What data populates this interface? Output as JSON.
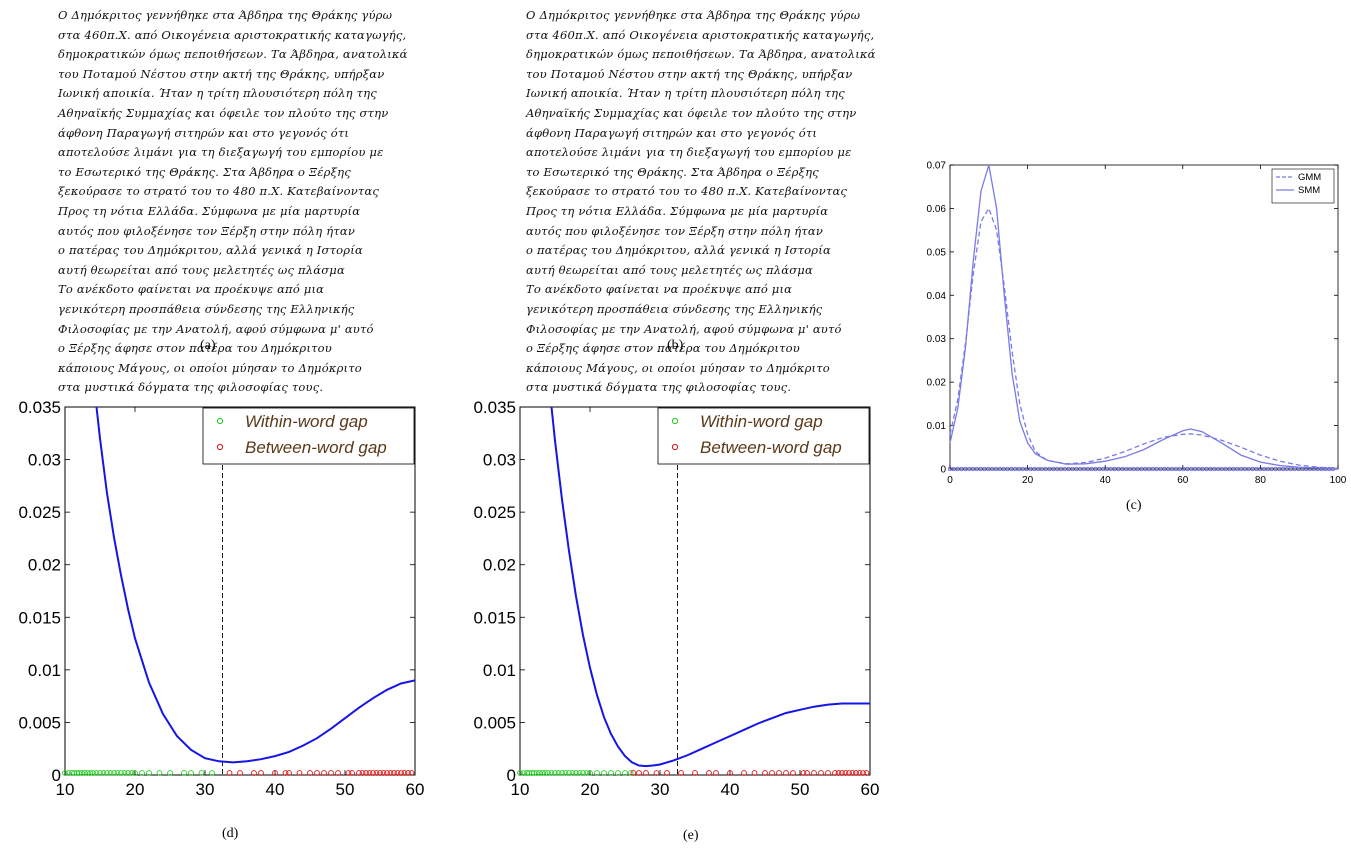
{
  "panel_a": {
    "caption": "(a)",
    "lines": [
      "O Δημόκριτος γεννήθηκε στα Άβδηρα της Θράκης γύρω",
      "στα 460π.Χ. από Οικογένεια αριστοκρατικής καταγωγής,",
      "δημοκρατικών όμως πεποιθήσεων. Τα Άβδηρα, ανατολικά",
      "του Ποταμού Νέστου στην ακτή της Θράκης, υπήρξαν",
      "Ιωνική αποικία. Ήταν η τρίτη πλουσιότερη πόλη της",
      "Αθηναϊκής Συμμαχίας και όφειλε τον πλούτο της στην",
      "άφθονη Παραγωγή σιτηρών και στο γεγονός ότι",
      "αποτελούσε λιμάνι για τη διεξαγωγή του εμπορίου με",
      "το Εσωτερικό της Θράκης. Στα Άβδηρα ο Ξέρξης",
      "ξεκούρασε το στρατό του το 480 π.Χ. Κατεβαίνοντας",
      "Προς τη νότια Ελλάδα. Σύμφωνα με μία μαρτυρία",
      "αυτός που φιλοξένησε τον Ξέρξη στην πόλη ήταν",
      "ο πατέρας του Δημόκριτου, αλλά γενικά η Ιστορία",
      "αυτή θεωρείται από τους μελετητές ως πλάσμα",
      "Το ανέκδοτο φαίνεται να προέκυψε από μια",
      "γενικότερη προσπάθεια σύνδεσης της Ελληνικής",
      "Φιλοσοφίας με την Ανατολή, αφού σύμφωνα μ' αυτό",
      "ο Ξέρξης άφησε στον πατέρα του Δημόκριτου",
      "κάποιους Μάγους, οι οποίοι μύησαν το Δημόκριτο",
      "στα μυστικά δόγματα της φιλοσοφίας τους."
    ]
  },
  "panel_b": {
    "caption": "(b)",
    "lines": [
      "O Δημόκριτος γεννήθηκε στα Άβδηρα της Θράκης γύρω",
      "στα 460π.Χ. από Οικογένεια αριστοκρατικής καταγωγής,",
      "δημοκρατικών όμως πεποιθήσεων. Τα Άβδηρα, ανατολικά",
      "του Ποταμού Νέστου στην ακτή της Θράκης, υπήρξαν",
      "Ιωνική αποικία. Ήταν η τρίτη πλουσιότερη πόλη της",
      "Αθηναϊκής Συμμαχίας και όφειλε τον πλούτο της στην",
      "άφθονη Παραγωγή σιτηρών και στο γεγονός ότι",
      "αποτελούσε λιμάνι για τη διεξαγωγή του εμπορίου με",
      "το Εσωτερικό της Θράκης. Στα Άβδηρα ο Ξέρξης",
      "ξεκούρασε το στρατό του το 480 π.Χ. Κατεβαίνοντας",
      "Προς τη νότια Ελλάδα. Σύμφωνα με μία μαρτυρία",
      "αυτός που φιλοξένησε τον Ξέρξη στην πόλη ήταν",
      "ο πατέρας του Δημόκριτου, αλλά γενικά η Ιστορία",
      "αυτή θεωρείται από τους μελετητές ως πλάσμα",
      "Το ανέκδοτο φαίνεται να προέκυψε από μια",
      "γενικότερη προσπάθεια σύνδεσης της Ελληνικής",
      "Φιλοσοφίας με την Ανατολή, αφού σύμφωνα μ' αυτό",
      "ο Ξέρξης άφησε στον πατέρα του Δημόκριτου",
      "κάποιους Μάγους, οι οποίοι μύησαν το Δημόκριτο",
      "στα μυστικά δόγματα της φιλοσοφίας τους."
    ]
  },
  "colors": {
    "blue": "#1515e6",
    "green": "#22cc22",
    "red": "#e01010",
    "legend_text": "#5a3a1a",
    "smm": "#7a7ae8"
  },
  "chart_data": [
    {
      "id": "c",
      "caption": "(c)",
      "type": "line",
      "xlim": [
        0,
        100
      ],
      "ylim": [
        0,
        0.07
      ],
      "xticks": [
        "0",
        "20",
        "40",
        "60",
        "80",
        "100"
      ],
      "yticks": [
        "0",
        "0.01",
        "0.02",
        "0.03",
        "0.04",
        "0.05",
        "0.06",
        "0.07"
      ],
      "legend": [
        "GMM",
        "SMM"
      ],
      "legend_position": "top-right",
      "series": [
        {
          "name": "GMM",
          "style": "dashed",
          "x": [
            0,
            2,
            4,
            6,
            8,
            10,
            12,
            14,
            16,
            18,
            20,
            22,
            25,
            30,
            35,
            40,
            45,
            50,
            55,
            60,
            62,
            65,
            70,
            75,
            80,
            85,
            90,
            95,
            100
          ],
          "y": [
            0.008,
            0.016,
            0.029,
            0.045,
            0.057,
            0.06,
            0.055,
            0.042,
            0.027,
            0.015,
            0.008,
            0.004,
            0.002,
            0.0012,
            0.0015,
            0.0025,
            0.004,
            0.0058,
            0.0073,
            0.008,
            0.0081,
            0.0078,
            0.0066,
            0.005,
            0.0032,
            0.0018,
            0.0009,
            0.0004,
            0.0002
          ]
        },
        {
          "name": "SMM",
          "style": "solid",
          "x": [
            0,
            2,
            4,
            6,
            8,
            10,
            12,
            14,
            16,
            18,
            20,
            22,
            25,
            30,
            35,
            40,
            45,
            50,
            55,
            60,
            62,
            65,
            70,
            75,
            80,
            85,
            90,
            95,
            100
          ],
          "y": [
            0.006,
            0.014,
            0.028,
            0.048,
            0.064,
            0.07,
            0.06,
            0.04,
            0.022,
            0.011,
            0.006,
            0.0035,
            0.002,
            0.0011,
            0.0012,
            0.0018,
            0.0028,
            0.0045,
            0.0068,
            0.0088,
            0.0092,
            0.0086,
            0.006,
            0.0032,
            0.0016,
            0.0008,
            0.0004,
            0.0002,
            0.0001
          ]
        }
      ],
      "points_range": [
        0,
        100
      ]
    },
    {
      "id": "d",
      "caption": "(d)",
      "type": "line",
      "xlim": [
        10,
        60
      ],
      "ylim": [
        0,
        0.035
      ],
      "xticks": [
        "10",
        "20",
        "30",
        "40",
        "50",
        "60"
      ],
      "yticks": [
        "0",
        "0.005",
        "0.01",
        "0.015",
        "0.02",
        "0.025",
        "0.03",
        "0.035"
      ],
      "legend": [
        "Within-word gap",
        "Between-word gap"
      ],
      "legend_position": "top-right",
      "threshold": 32.5,
      "curve": {
        "x": [
          14.5,
          15,
          16,
          17,
          18,
          19,
          20,
          22,
          24,
          26,
          28,
          30,
          32,
          34,
          36,
          38,
          40,
          42,
          44,
          46,
          48,
          50,
          52,
          54,
          56,
          58,
          60
        ],
        "y": [
          0.035,
          0.032,
          0.0268,
          0.0226,
          0.019,
          0.0158,
          0.013,
          0.0088,
          0.0058,
          0.0037,
          0.0024,
          0.0016,
          0.0013,
          0.0012,
          0.0013,
          0.0015,
          0.0018,
          0.0022,
          0.0028,
          0.0035,
          0.0044,
          0.0054,
          0.0064,
          0.0073,
          0.0081,
          0.0087,
          0.009
        ]
      },
      "within_points": [
        10,
        10.5,
        11,
        11.3,
        11.7,
        12,
        12.4,
        12.8,
        13.2,
        13.6,
        14,
        14.5,
        15,
        15.5,
        16,
        16.5,
        17,
        17.5,
        18,
        18.5,
        19,
        19.5,
        20,
        21,
        22,
        23.5,
        25,
        27,
        28,
        29.5,
        31
      ],
      "between_points": [
        33.5,
        35,
        37,
        38,
        40,
        41.5,
        42,
        43.5,
        45,
        46,
        47,
        48,
        49,
        50.5,
        51,
        52,
        52.5,
        53,
        53.5,
        54,
        54.5,
        55,
        55.5,
        56,
        56.5,
        57,
        57.5,
        58,
        58.5,
        59,
        59.5
      ]
    },
    {
      "id": "e",
      "caption": "(e)",
      "type": "line",
      "xlim": [
        10,
        60
      ],
      "ylim": [
        0,
        0.035
      ],
      "xticks": [
        "10",
        "20",
        "30",
        "40",
        "50",
        "60"
      ],
      "yticks": [
        "0",
        "0.005",
        "0.01",
        "0.015",
        "0.02",
        "0.025",
        "0.03",
        "0.035"
      ],
      "legend": [
        "Within-word gap",
        "Between-word gap"
      ],
      "legend_position": "top-right",
      "threshold": 32.5,
      "curve": {
        "x": [
          14.5,
          15,
          16,
          17,
          18,
          19,
          20,
          21,
          22,
          23,
          24,
          25,
          26,
          27,
          28,
          29,
          30,
          32,
          34,
          36,
          38,
          40,
          42,
          44,
          46,
          48,
          50,
          52,
          54,
          56,
          58,
          60
        ],
        "y": [
          0.035,
          0.0318,
          0.0262,
          0.0213,
          0.017,
          0.0133,
          0.0102,
          0.0076,
          0.0055,
          0.0039,
          0.0027,
          0.0018,
          0.0012,
          0.0009,
          0.00085,
          0.0009,
          0.001,
          0.0014,
          0.0019,
          0.0025,
          0.0031,
          0.0037,
          0.0043,
          0.0049,
          0.0054,
          0.0059,
          0.0062,
          0.0065,
          0.0067,
          0.0068,
          0.0068,
          0.0068
        ]
      },
      "within_points": [
        10,
        10.5,
        11,
        11.3,
        11.7,
        12,
        12.4,
        12.8,
        13.2,
        13.6,
        14,
        14.5,
        15,
        15.5,
        16,
        16.5,
        17,
        17.5,
        18,
        18.5,
        19,
        19.5,
        20,
        21,
        22,
        23,
        24,
        25,
        25.8
      ],
      "between_points": [
        26.2,
        27,
        28,
        29.5,
        31,
        33,
        35,
        37,
        38,
        40,
        42,
        43.5,
        45,
        46,
        47,
        48,
        49,
        50.5,
        51,
        52,
        53,
        54,
        55,
        55.5,
        56,
        56.5,
        57,
        57.5,
        58,
        58.5,
        59,
        59.5
      ]
    }
  ]
}
